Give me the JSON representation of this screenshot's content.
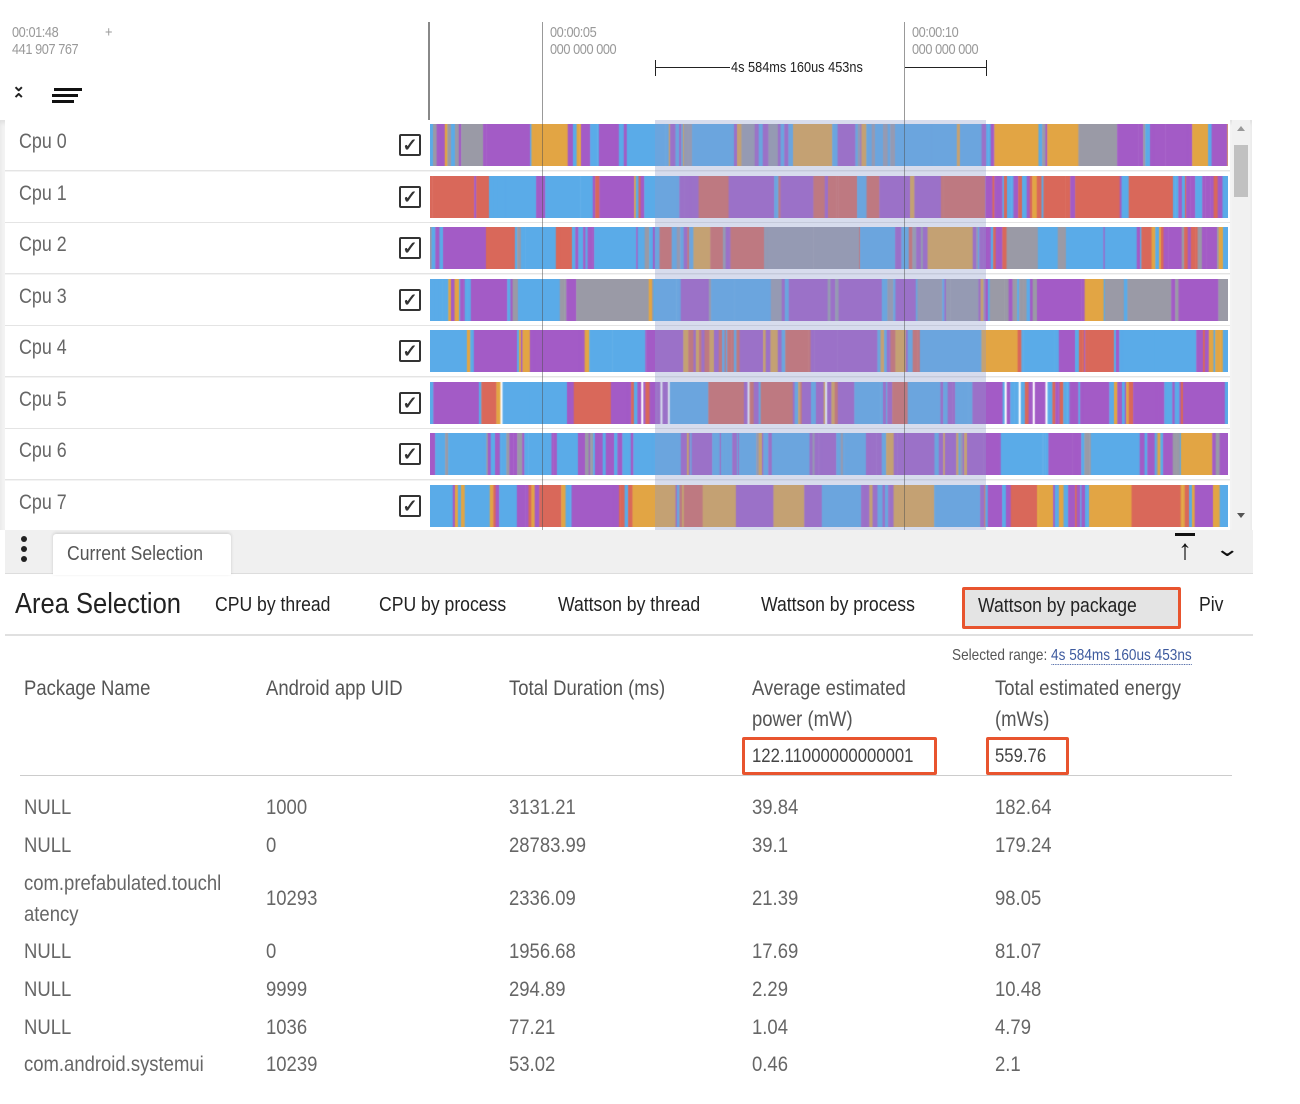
{
  "timeline": {
    "cursor_time": "00:01:48",
    "cursor_ns": "441 907 767",
    "cursor_plus": "+",
    "ticks": [
      {
        "time": "00:00:05",
        "ns": "000 000 000"
      },
      {
        "time": "00:00:10",
        "ns": "000 000 000"
      }
    ],
    "selection_duration": "4s 584ms 160us 453ns"
  },
  "colors": {
    "slice_palette": [
      "#a35bc6",
      "#5aabe8",
      "#d9685a",
      "#9a9aa6",
      "#e2a544",
      "#8f6fd6"
    ],
    "selection_overlay": "#8c9ccc",
    "highlight": "#e8542e",
    "link": "#3d5a9e"
  },
  "tracks": [
    {
      "label": "Cpu 0",
      "checked": true
    },
    {
      "label": "Cpu 1",
      "checked": true
    },
    {
      "label": "Cpu 2",
      "checked": true
    },
    {
      "label": "Cpu 3",
      "checked": true
    },
    {
      "label": "Cpu 4",
      "checked": true
    },
    {
      "label": "Cpu 5",
      "checked": true
    },
    {
      "label": "Cpu 6",
      "checked": true
    },
    {
      "label": "Cpu 7",
      "checked": true
    }
  ],
  "bottom_panel": {
    "tab": "Current Selection",
    "title": "Area Selection",
    "subtabs": [
      "CPU by thread",
      "CPU by process",
      "Wattson by thread",
      "Wattson by process",
      "Wattson by package",
      "Piv"
    ],
    "active_subtab": "Wattson by package",
    "selected_range_label": "Selected range:",
    "selected_range_value": "4s 584ms 160us 453ns",
    "table": {
      "headers": [
        "Package Name",
        "Android app UID",
        "Total Duration (ms)",
        "Average estimated power (mW)",
        "Total estimated energy (mWs)"
      ],
      "totals": {
        "avg_power": "122.11000000000001",
        "total_energy": "559.76"
      },
      "rows": [
        [
          "NULL",
          "1000",
          "3131.21",
          "39.84",
          "182.64"
        ],
        [
          "NULL",
          "0",
          "28783.99",
          "39.1",
          "179.24"
        ],
        [
          "com.prefabulated.touchl atency",
          "10293",
          "2336.09",
          "21.39",
          "98.05"
        ],
        [
          "NULL",
          "0",
          "1956.68",
          "17.69",
          "81.07"
        ],
        [
          "NULL",
          "9999",
          "294.89",
          "2.29",
          "10.48"
        ],
        [
          "NULL",
          "1036",
          "77.21",
          "1.04",
          "4.79"
        ],
        [
          "com.android.systemui",
          "10239",
          "53.02",
          "0.46",
          "2.1"
        ]
      ]
    }
  }
}
